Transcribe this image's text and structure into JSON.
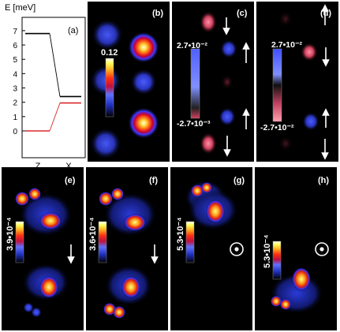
{
  "energy_plot": {
    "ylabel": "E [meV]",
    "panel_label": "(a)",
    "yticks": [
      "0",
      "1",
      "2",
      "3",
      "4",
      "5",
      "6",
      "7"
    ],
    "xticks": [
      "Z",
      "X"
    ],
    "levels": {
      "Z_black": 6.8,
      "Z_red": 0.0,
      "X_black": 2.4,
      "X_red": 1.95
    }
  },
  "panels": {
    "b": {
      "label": "(b)",
      "scale_top": "0.12"
    },
    "c": {
      "label": "(c)",
      "scale_top": "2.7•10⁻²",
      "scale_bottom": "-2.7•10⁻³"
    },
    "d": {
      "label": "(d)",
      "scale_top": "2.7•10⁻²",
      "scale_bottom": "-2.7•10⁻²"
    },
    "e": {
      "label": "(e)",
      "scale": "3.9•10⁻⁴"
    },
    "f": {
      "label": "(f)",
      "scale": "3.6•10⁻⁴"
    },
    "g": {
      "label": "(g)",
      "scale": "5.3•10⁻⁴"
    },
    "h": {
      "label": "(h)",
      "scale": "5.3•10⁻⁴"
    }
  },
  "colors": {
    "level_black": "#000000",
    "level_red": "#d8282a",
    "panel_bg": "#000000",
    "negative": "#3a4bff",
    "positive": "#ff5577"
  }
}
